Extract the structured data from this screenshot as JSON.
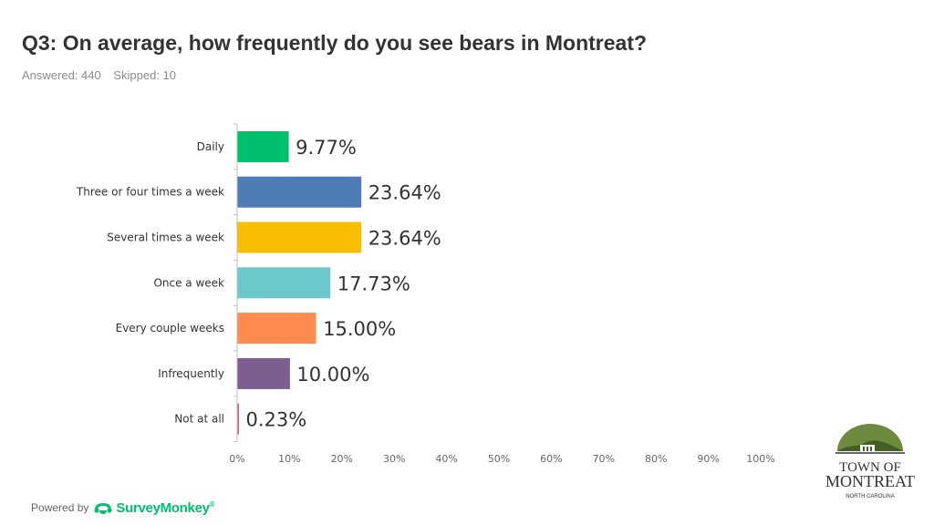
{
  "header": {
    "title": "Q3: On average, how frequently do you see bears in Montreat?",
    "answered": "Answered: 440",
    "skipped": "Skipped: 10"
  },
  "footer": {
    "powered_by": "Powered by",
    "brand": "SurveyMonkey",
    "trademark": "®"
  },
  "logo": {
    "line1": "TOWN OF",
    "line2": "MONTREAT",
    "line3": "NORTH CAROLINA"
  },
  "chart_data": {
    "type": "bar",
    "orientation": "horizontal",
    "categories": [
      "Daily",
      "Three or four times a week",
      "Several times a week",
      "Once a week",
      "Every couple weeks",
      "Infrequently",
      "Not at all"
    ],
    "values": [
      9.77,
      23.64,
      23.64,
      17.73,
      15.0,
      10.0,
      0.23
    ],
    "value_labels": [
      "9.77%",
      "23.64%",
      "23.64%",
      "17.73%",
      "15.00%",
      "10.00%",
      "0.23%"
    ],
    "colors": [
      "#00bf6f",
      "#507cb6",
      "#f9be00",
      "#6bc8cd",
      "#ff8b4f",
      "#7d5e90",
      "#d25f90"
    ],
    "xlim": [
      0,
      100
    ],
    "xticks": [
      "0%",
      "10%",
      "20%",
      "30%",
      "40%",
      "50%",
      "60%",
      "70%",
      "80%",
      "90%",
      "100%"
    ],
    "grid": false,
    "legend": "none"
  }
}
